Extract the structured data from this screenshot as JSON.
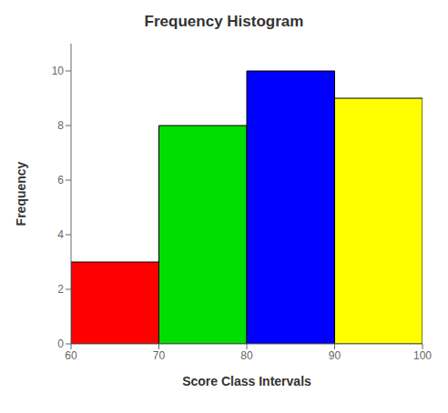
{
  "chart_data": {
    "type": "histogram",
    "title": "Frequency Histogram",
    "x_label": "Score Class Intervals",
    "y_label": "Frequency",
    "bins": [
      60,
      70,
      80,
      90,
      100
    ],
    "values": [
      3,
      8,
      10,
      9
    ],
    "colors": [
      "#ff0000",
      "#00dd00",
      "#0000ff",
      "#ffff00"
    ],
    "xlim": [
      60,
      100
    ],
    "ylim": [
      0,
      11
    ],
    "xticks": [
      60,
      70,
      80,
      90,
      100
    ],
    "yticks": [
      0,
      2,
      4,
      6,
      8,
      10
    ],
    "grid": false
  }
}
